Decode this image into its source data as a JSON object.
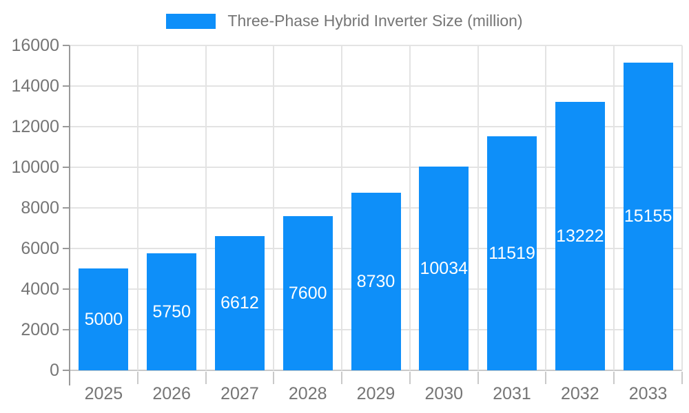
{
  "chart_data": {
    "type": "bar",
    "title": "Three-Phase Hybrid Inverter Size (million)",
    "categories": [
      "2025",
      "2026",
      "2027",
      "2028",
      "2029",
      "2030",
      "2031",
      "2032",
      "2033"
    ],
    "values": [
      5000,
      5750,
      6612,
      7600,
      8730,
      10034,
      11519,
      13222,
      15155
    ],
    "xlabel": "",
    "ylabel": "",
    "ylim": [
      0,
      16000
    ],
    "yticks": [
      0,
      2000,
      4000,
      6000,
      8000,
      10000,
      12000,
      14000,
      16000
    ],
    "grid": true,
    "legend_position": "top-center",
    "bar_color": "#0e8ff9",
    "bar_label_color": "#ffffff",
    "axis_text_color": "#757575",
    "grid_color": "#e3e3e3",
    "axis_line_color": "#999999",
    "minor_tick_color": "#c9c9c9"
  }
}
